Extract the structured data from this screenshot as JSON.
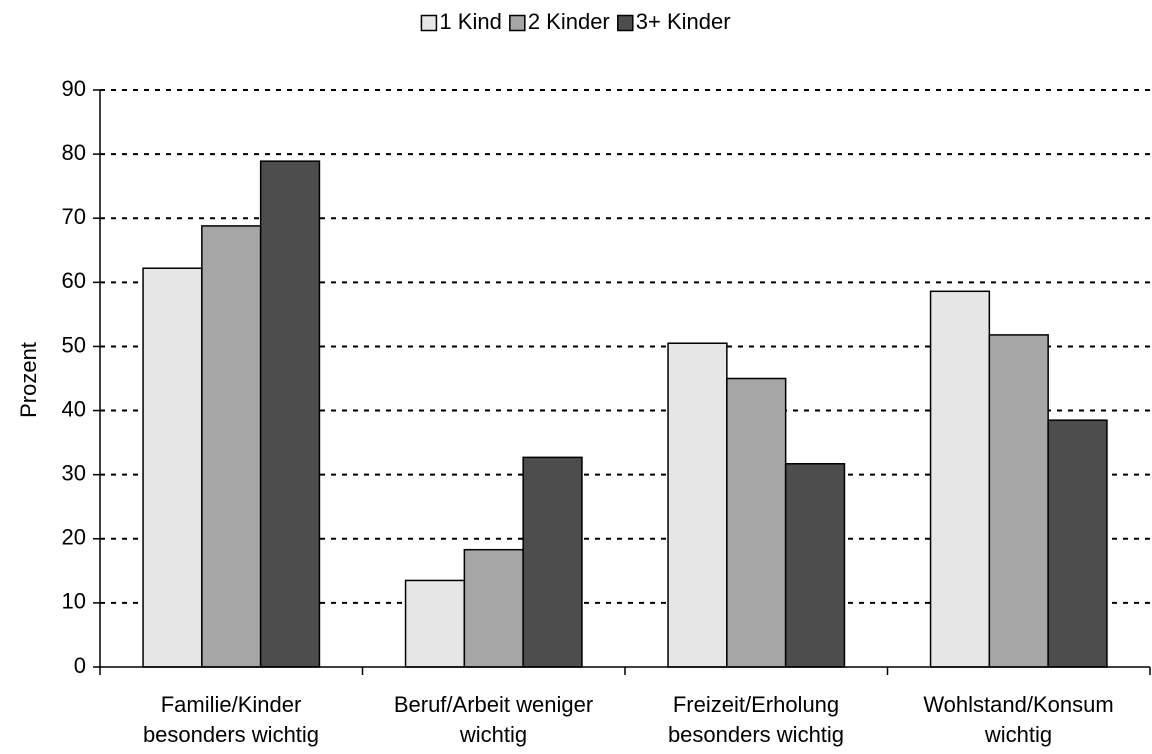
{
  "chart_data": {
    "type": "bar",
    "categories": [
      "Familie/Kinder\nbesonders wichtig",
      "Beruf/Arbeit weniger\nwichtig",
      "Freizeit/Erholung\nbesonders wichtig",
      "Wohlstand/Konsum\nwichtig"
    ],
    "series": [
      {
        "name": "1 Kind",
        "color": "#e6e6e6",
        "values": [
          62.2,
          13.5,
          50.5,
          58.6
        ]
      },
      {
        "name": "2 Kinder",
        "color": "#a6a6a6",
        "values": [
          68.8,
          18.3,
          45.0,
          51.8
        ]
      },
      {
        "name": "3+ Kinder",
        "color": "#4d4d4d",
        "values": [
          78.9,
          32.7,
          31.7,
          38.5
        ]
      }
    ],
    "ylabel": "Prozent",
    "ylim": [
      0,
      90
    ],
    "yticks": [
      0,
      10,
      20,
      30,
      40,
      50,
      60,
      70,
      80,
      90
    ],
    "grid": true,
    "legend": "top"
  }
}
